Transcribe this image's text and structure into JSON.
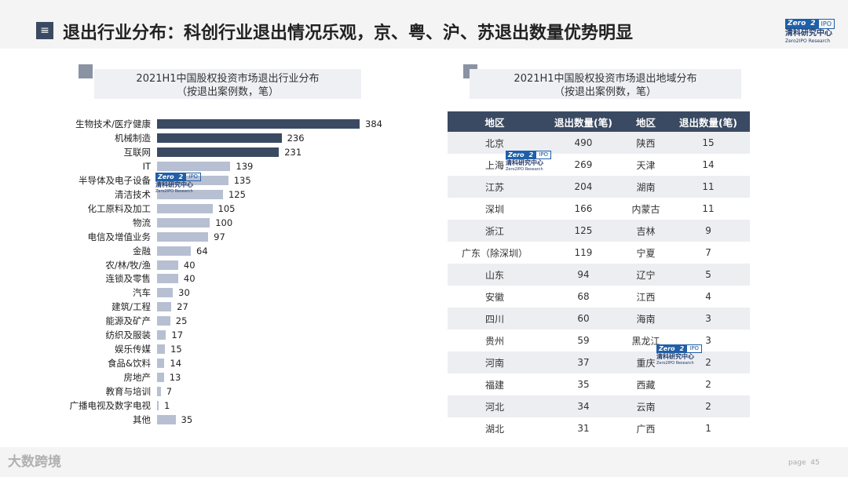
{
  "title_icon": "≡",
  "title": "退出行业分布：科创行业退出情况乐观，京、粤、沪、苏退出数量优势明显",
  "logo": {
    "zero": "Zero",
    "two": "2",
    "ipo": "IPO",
    "cn": "清科研究中心",
    "en": "Zero2IPO Research"
  },
  "left_panel": {
    "heading_line1": "2021H1中国股权投资市场退出行业分布",
    "heading_line2": "（按退出案例数，笔）"
  },
  "right_panel": {
    "heading_line1": "2021H1中国股权投资市场退出地域分布",
    "heading_line2": "（按退出案例数，笔）"
  },
  "colors": {
    "dark_bar": "#3a4a62",
    "light_bar": "#b7c0d2"
  },
  "chart_data": {
    "type": "bar",
    "orientation": "horizontal",
    "title": "2021H1中国股权投资市场退出行业分布",
    "subtitle": "（按退出案例数，笔）",
    "categories": [
      "生物技术/医疗健康",
      "机械制造",
      "互联网",
      "IT",
      "半导体及电子设备",
      "清洁技术",
      "化工原料及加工",
      "物流",
      "电信及增值业务",
      "金融",
      "农/林/牧/渔",
      "连锁及零售",
      "汽车",
      "建筑/工程",
      "能源及矿产",
      "纺织及服装",
      "娱乐传媒",
      "食品&饮料",
      "房地产",
      "教育与培训",
      "广播电视及数字电视",
      "其他"
    ],
    "values": [
      384,
      236,
      231,
      139,
      135,
      125,
      105,
      100,
      97,
      64,
      40,
      40,
      30,
      27,
      25,
      17,
      15,
      14,
      13,
      7,
      1,
      35
    ],
    "highlighted_count": 3
  },
  "region_table": {
    "headers": [
      "地区",
      "退出数量(笔)",
      "地区",
      "退出数量(笔)"
    ],
    "rows": [
      [
        "北京",
        "490",
        "陕西",
        "15"
      ],
      [
        "上海",
        "269",
        "天津",
        "14"
      ],
      [
        "江苏",
        "204",
        "湖南",
        "11"
      ],
      [
        "深圳",
        "166",
        "内蒙古",
        "11"
      ],
      [
        "浙江",
        "125",
        "吉林",
        "9"
      ],
      [
        "广东（除深圳）",
        "119",
        "宁夏",
        "7"
      ],
      [
        "山东",
        "94",
        "辽宁",
        "5"
      ],
      [
        "安徽",
        "68",
        "江西",
        "4"
      ],
      [
        "四川",
        "60",
        "海南",
        "3"
      ],
      [
        "贵州",
        "59",
        "黑龙江",
        "3"
      ],
      [
        "河南",
        "37",
        "重庆",
        "2"
      ],
      [
        "福建",
        "35",
        "西藏",
        "2"
      ],
      [
        "河北",
        "34",
        "云南",
        "2"
      ],
      [
        "湖北",
        "31",
        "广西",
        "1"
      ]
    ]
  },
  "footer": {
    "brand": "大数跨境",
    "page_label": "page",
    "page_number": "45"
  }
}
